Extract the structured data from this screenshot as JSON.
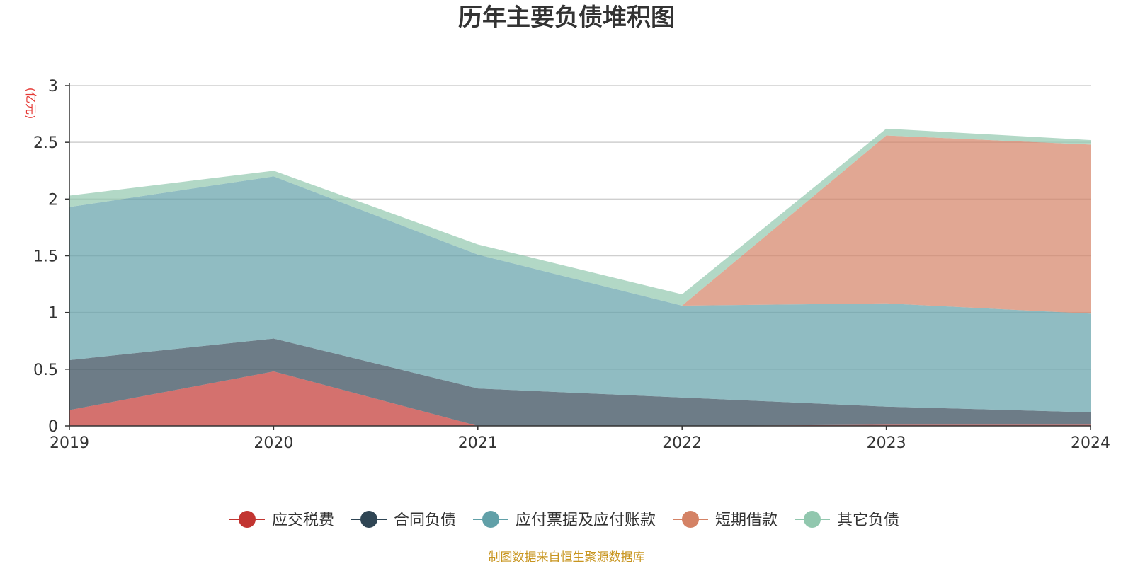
{
  "chart_data": {
    "type": "area",
    "stacked": true,
    "title": "历年主要负债堆积图",
    "unit_label": "(亿元)",
    "x": [
      "2019",
      "2020",
      "2021",
      "2022",
      "2023",
      "2024"
    ],
    "ylim": [
      0,
      3
    ],
    "yticks": [
      "0",
      "0.5",
      "1",
      "1.5",
      "2",
      "2.5",
      "3"
    ],
    "grid": true,
    "legend_position": "bottom",
    "series": [
      {
        "name": "应交税费",
        "color": "#c23531",
        "values": [
          0.14,
          0.48,
          0.0,
          0.0,
          0.01,
          0.01
        ]
      },
      {
        "name": "合同负债",
        "color": "#2f4554",
        "values": [
          0.44,
          0.29,
          0.33,
          0.25,
          0.16,
          0.11
        ]
      },
      {
        "name": "应付票据及应付账款",
        "color": "#61a0a8",
        "values": [
          1.35,
          1.43,
          1.18,
          0.81,
          0.91,
          0.87
        ]
      },
      {
        "name": "短期借款",
        "color": "#d48265",
        "values": [
          0.0,
          0.0,
          0.0,
          0.0,
          1.48,
          1.49
        ]
      },
      {
        "name": "其它负债",
        "color": "#91c7ae",
        "values": [
          0.1,
          0.05,
          0.09,
          0.1,
          0.06,
          0.04
        ]
      }
    ],
    "source_note": "制图数据来自恒生聚源数据库"
  }
}
